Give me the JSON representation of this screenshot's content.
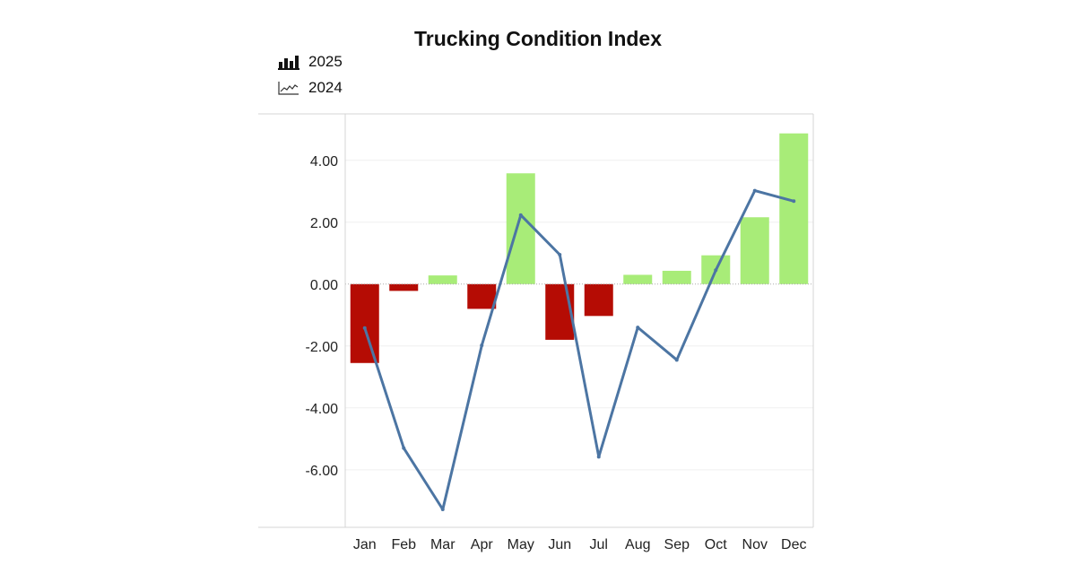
{
  "chart_data": {
    "type": "bar",
    "title": "Trucking Condition Index",
    "xlabel": "",
    "ylabel": "",
    "categories": [
      "Jan",
      "Feb",
      "Mar",
      "Apr",
      "May",
      "Jun",
      "Jul",
      "Aug",
      "Sep",
      "Oct",
      "Nov",
      "Dec"
    ],
    "series": [
      {
        "name": "2025",
        "type": "bar",
        "values": [
          -2.55,
          -0.22,
          0.28,
          -0.8,
          3.58,
          -1.8,
          -1.03,
          0.3,
          0.43,
          0.93,
          2.16,
          4.87
        ],
        "positive_color": "#a8ec78",
        "negative_color": "#b50c04"
      },
      {
        "name": "2024",
        "type": "line",
        "values": [
          -1.42,
          -5.3,
          -7.28,
          -1.98,
          2.23,
          0.95,
          -5.58,
          -1.4,
          -2.45,
          0.45,
          3.02,
          2.68
        ],
        "color": "#4c75a3"
      }
    ],
    "yticks": [
      4.0,
      2.0,
      0.0,
      -2.0,
      -4.0,
      -6.0
    ],
    "ytick_labels": [
      "4.00",
      "2.00",
      "0.00",
      "-2.00",
      "-4.00",
      "-6.00"
    ],
    "ylim": [
      -7.86,
      5.5
    ],
    "grid": true,
    "legend_position": "top-left"
  }
}
